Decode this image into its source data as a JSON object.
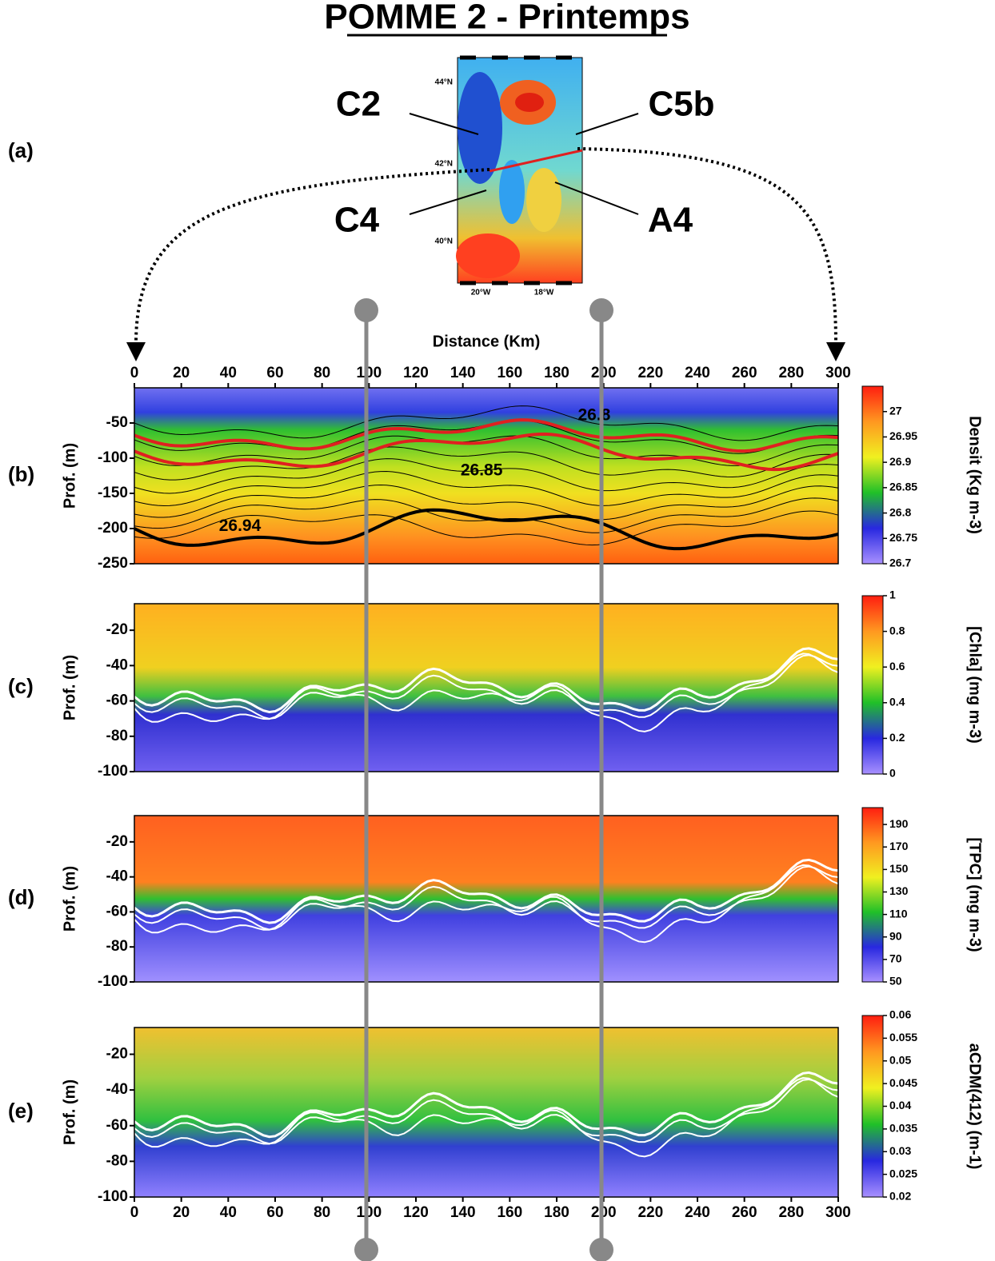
{
  "title": "POMME 2 - Printemps",
  "map": {
    "panel_label": "(a)",
    "stations": [
      "C2",
      "C5b",
      "C4",
      "A4"
    ],
    "lat_ticks": [
      "44°N",
      "42°N",
      "40°N"
    ],
    "lon_ticks": [
      "20°W",
      "18°W"
    ]
  },
  "chart_data": [
    {
      "type": "heatmap",
      "panel_label": "(b)",
      "ylabel": "Prof. (m)",
      "xlabel": "Distance (Km)",
      "xlim": [
        0,
        300
      ],
      "xticks": [
        0,
        20,
        40,
        60,
        80,
        100,
        120,
        140,
        160,
        180,
        200,
        220,
        240,
        260,
        280,
        300
      ],
      "ylim": [
        -250,
        0
      ],
      "yticks": [
        -250,
        -200,
        -150,
        -100,
        -50
      ],
      "colorbar_label": "Densit   (Kg m-3)",
      "clim": [
        26.7,
        27.05
      ],
      "cticks": [
        26.7,
        26.75,
        26.8,
        26.85,
        26.9,
        26.95,
        27
      ],
      "contour_labels": [
        {
          "value": 26.8,
          "x": 196,
          "depth": -40
        },
        {
          "value": 26.85,
          "x": 148,
          "depth": -118
        },
        {
          "value": 26.94,
          "x": 45,
          "depth": -197
        }
      ]
    },
    {
      "type": "heatmap",
      "panel_label": "(c)",
      "ylabel": "Prof. (m)",
      "xlim": [
        0,
        300
      ],
      "ylim": [
        -100,
        -5
      ],
      "yticks": [
        -100,
        -80,
        -60,
        -40,
        -20
      ],
      "colorbar_label": "[Chla] (mg m-3)",
      "clim": [
        0,
        1
      ],
      "cticks": [
        0,
        0.2,
        0.4,
        0.6,
        0.8,
        1
      ]
    },
    {
      "type": "heatmap",
      "panel_label": "(d)",
      "ylabel": "Prof. (m)",
      "xlim": [
        0,
        300
      ],
      "ylim": [
        -100,
        -5
      ],
      "yticks": [
        -100,
        -80,
        -60,
        -40,
        -20
      ],
      "colorbar_label": "[TPC] (mg m-3)",
      "clim": [
        50,
        205
      ],
      "cticks": [
        50,
        70,
        90,
        110,
        130,
        150,
        170,
        190
      ]
    },
    {
      "type": "heatmap",
      "panel_label": "(e)",
      "ylabel": "Prof. (m)",
      "xlim": [
        0,
        300
      ],
      "xticks": [
        0,
        20,
        40,
        60,
        80,
        100,
        120,
        140,
        160,
        180,
        200,
        220,
        240,
        260,
        280,
        300
      ],
      "ylim": [
        -100,
        -5
      ],
      "yticks": [
        -100,
        -80,
        -60,
        -40,
        -20
      ],
      "colorbar_label": "aCDM(412) (m-1)",
      "clim": [
        0.02,
        0.06
      ],
      "cticks": [
        0.02,
        0.025,
        0.03,
        0.035,
        0.04,
        0.045,
        0.05,
        0.055,
        0.06
      ]
    }
  ]
}
